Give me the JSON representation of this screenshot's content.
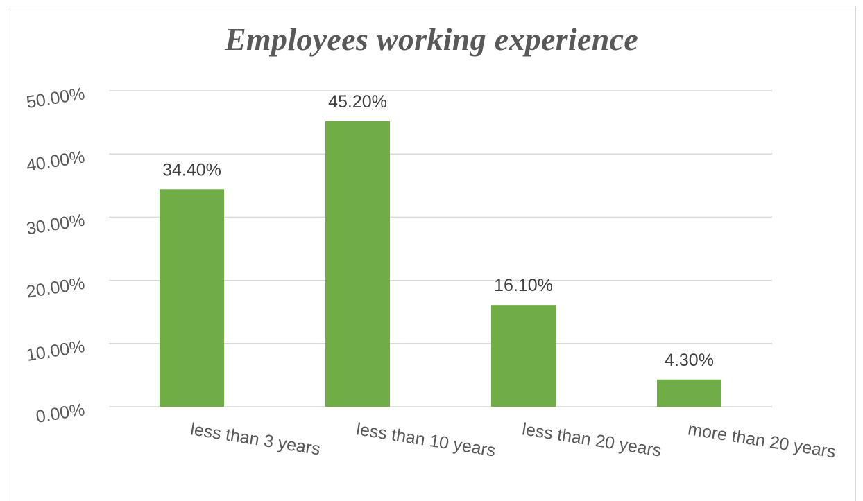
{
  "chart_data": {
    "type": "bar",
    "title": "Employees working experience",
    "xlabel": "",
    "ylabel": "",
    "categories": [
      "less than 3 years",
      "less than 10 years",
      "less than 20 years",
      "more than 20 years"
    ],
    "values": [
      34.4,
      45.2,
      16.1,
      4.3
    ],
    "data_labels": [
      "34.40%",
      "45.20%",
      "16.10%",
      "4.30%"
    ],
    "ylim": [
      0,
      50
    ],
    "yticks": [
      0,
      10,
      20,
      30,
      40,
      50
    ],
    "ytick_labels": [
      "0.00%",
      "10.00%",
      "20.00%",
      "30.00%",
      "40.00%",
      "50.00%"
    ],
    "grid": true,
    "legend": "none",
    "colors": {
      "bar": "#70ad47",
      "grid": "#d9d9d9",
      "text": "#595959"
    }
  }
}
